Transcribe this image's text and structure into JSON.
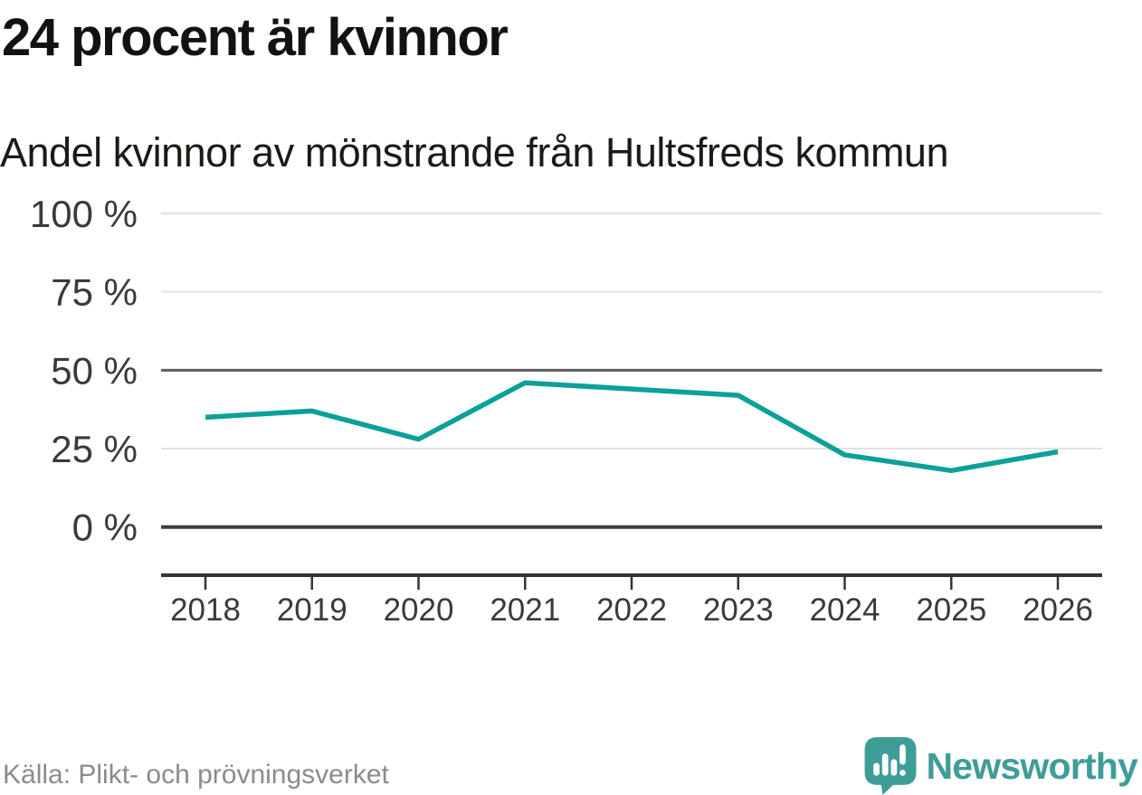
{
  "title": "24 procent är kvinnor",
  "subtitle": "Andel kvinnor av mönstrande från Hultsfreds kommun",
  "source": "Källa: Plikt- och prövningsverket",
  "logo": {
    "brand": "Newsworthy"
  },
  "colors": {
    "series": "#0ca09a",
    "logo_teal": "#3f9d98",
    "grid_light": "#e3e3e3",
    "grid_mid": "#5d5e60",
    "grid_zero": "#3d3d3d"
  },
  "chart_data": {
    "type": "line",
    "title": "24 procent är kvinnor",
    "subtitle": "Andel kvinnor av mönstrande från Hultsfreds kommun",
    "xlabel": "",
    "ylabel": "",
    "unit": "%",
    "categories": [
      "2018",
      "2019",
      "2020",
      "2021",
      "2022",
      "2023",
      "2024",
      "2025",
      "2026"
    ],
    "values": [
      35,
      37,
      28,
      46,
      44,
      42,
      23,
      18,
      24
    ],
    "series_name": "Andel kvinnor",
    "ylim": [
      0,
      100
    ],
    "yticks": [
      0,
      25,
      50,
      75,
      100
    ],
    "ytick_labels": [
      "0 %",
      "25 %",
      "50 %",
      "75 %",
      "100 %"
    ],
    "grid": true,
    "legend_position": "none",
    "emphasized_gridlines": [
      0,
      50
    ]
  }
}
